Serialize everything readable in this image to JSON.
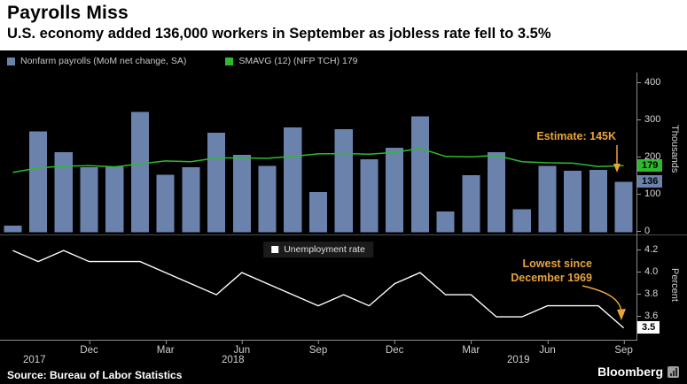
{
  "header": {
    "title": "Payrolls Miss",
    "subtitle": "U.S. economy added 136,000 workers in September as jobless rate fell to 3.5%"
  },
  "legend_top": {
    "payrolls": "Nonfarm payrolls (MoM net change, SA)",
    "smavg": "SMAVG (12) (NFP TCH) 179"
  },
  "legend_bottom": {
    "unemployment": "Unemployment rate"
  },
  "annotations": {
    "estimate": "Estimate: 145K",
    "lowest_line1": "Lowest since",
    "lowest_line2": "December 1969"
  },
  "badges": {
    "smavg": "179",
    "payrolls": "136",
    "unemployment": "3.5"
  },
  "axes": {
    "top_axis_title": "Thousands",
    "bottom_axis_title": "Percent",
    "top_ticks": [
      400,
      300,
      200,
      100,
      0
    ],
    "bottom_ticks": [
      "4.2",
      "4.0",
      "3.8",
      "3.6"
    ],
    "x_months": [
      "Dec",
      "Mar",
      "Jun",
      "Sep",
      "Dec",
      "Mar",
      "Jun",
      "Sep"
    ],
    "x_years": [
      "2017",
      "2018",
      "2019"
    ]
  },
  "footer": {
    "source": "Source: Bureau of Labor Statistics",
    "brand": "Bloomberg"
  },
  "colors": {
    "background": "#000000",
    "bar": "#6b82ad",
    "smavg": "#2dbb2d",
    "unemployment_line": "#ffffff",
    "annotation": "#e8a33d",
    "axis_text": "#d8d8d8"
  },
  "chart_data": [
    {
      "type": "bar",
      "title": "Nonfarm payrolls (MoM net change, SA) with 12-month moving average",
      "x": [
        "Sep 2017",
        "Oct 2017",
        "Nov 2017",
        "Dec 2017",
        "Jan 2018",
        "Feb 2018",
        "Mar 2018",
        "Apr 2018",
        "May 2018",
        "Jun 2018",
        "Jul 2018",
        "Aug 2018",
        "Sep 2018",
        "Oct 2018",
        "Nov 2018",
        "Dec 2018",
        "Jan 2019",
        "Feb 2019",
        "Mar 2019",
        "Apr 2019",
        "May 2019",
        "Jun 2019",
        "Jul 2019",
        "Aug 2019",
        "Sep 2019"
      ],
      "series": [
        {
          "name": "Nonfarm payrolls (MoM net change, SA)",
          "type": "bar",
          "values": [
            18,
            271,
            216,
            175,
            176,
            324,
            155,
            175,
            268,
            208,
            178,
            282,
            108,
            277,
            196,
            227,
            312,
            56,
            153,
            216,
            62,
            178,
            166,
            168,
            136
          ]
        },
        {
          "name": "SMAVG (12) (NFP TCH)",
          "type": "line",
          "values": [
            161,
            173,
            178,
            179,
            176,
            184,
            192,
            190,
            200,
            200,
            199,
            204,
            211,
            212,
            210,
            215,
            226,
            204,
            203,
            207,
            190,
            187,
            186,
            177,
            179
          ]
        }
      ],
      "ylabel": "Thousands",
      "ylim": [
        0,
        430
      ],
      "grid": false,
      "legend_position": "top-left",
      "annotation_estimate": 145,
      "latest_bar": 136,
      "latest_smavg": 179
    },
    {
      "type": "line",
      "title": "Unemployment rate",
      "x": [
        "Sep 2017",
        "Oct 2017",
        "Nov 2017",
        "Dec 2017",
        "Jan 2018",
        "Feb 2018",
        "Mar 2018",
        "Apr 2018",
        "May 2018",
        "Jun 2018",
        "Jul 2018",
        "Aug 2018",
        "Sep 2018",
        "Oct 2018",
        "Nov 2018",
        "Dec 2018",
        "Jan 2019",
        "Feb 2019",
        "Mar 2019",
        "Apr 2019",
        "May 2019",
        "Jun 2019",
        "Jul 2019",
        "Aug 2019",
        "Sep 2019"
      ],
      "series": [
        {
          "name": "Unemployment rate",
          "values": [
            4.2,
            4.1,
            4.2,
            4.1,
            4.1,
            4.1,
            4.0,
            3.9,
            3.8,
            4.0,
            3.9,
            3.8,
            3.7,
            3.8,
            3.7,
            3.9,
            4.0,
            3.8,
            3.8,
            3.6,
            3.6,
            3.7,
            3.7,
            3.7,
            3.5
          ]
        }
      ],
      "ylabel": "Percent",
      "ylim": [
        3.45,
        4.3
      ],
      "grid": false,
      "legend_position": "top-center",
      "latest_value": 3.5
    }
  ]
}
